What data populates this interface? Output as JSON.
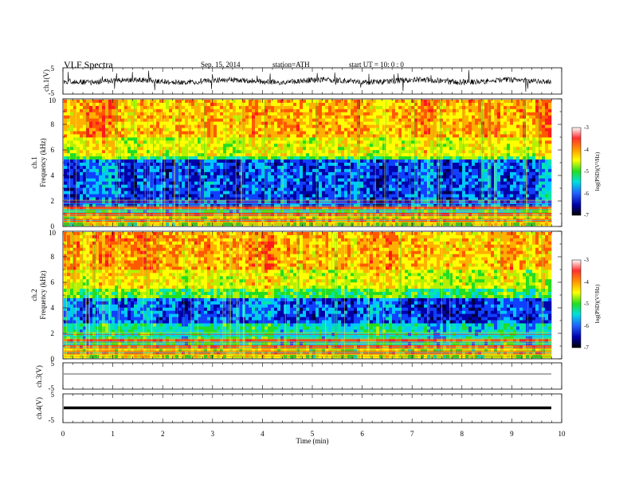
{
  "header": {
    "title": "VLF  Spectra",
    "date": "Sep. 15, 2014",
    "station": "station=ATH",
    "start": "start  UT  =    10: 0  : 0"
  },
  "chart_data": [
    {
      "type": "line",
      "name": "ch1-waveform",
      "ylabel": "ch.1(V)",
      "yticks": [
        "5",
        "-5"
      ],
      "ylim": [
        -5,
        5
      ],
      "xlim": [
        0,
        10
      ],
      "xticks": [
        "0",
        "1",
        "2",
        "3",
        "4",
        "5",
        "6",
        "7",
        "8",
        "9",
        "10"
      ],
      "xlabel": "Time  (min)"
    },
    {
      "type": "heatmap",
      "name": "ch1-spectrogram",
      "ylabel_channel": "ch.1",
      "ylabel": "Frequency  (kHz)",
      "yticks": [
        "0",
        "2",
        "4",
        "6",
        "8",
        "10"
      ],
      "ylim": [
        0,
        10
      ],
      "xlim": [
        0,
        9.8
      ],
      "colorbar": {
        "label": "log(PSD)(V²/Hz)",
        "ticks": [
          "-3",
          "-4",
          "-5",
          "-6",
          "-7"
        ],
        "range": [
          -7,
          -3
        ]
      }
    },
    {
      "type": "heatmap",
      "name": "ch2-spectrogram",
      "ylabel_channel": "ch.2",
      "ylabel": "Frequency  (kHz)",
      "yticks": [
        "0",
        "2",
        "4",
        "6",
        "8",
        "10"
      ],
      "ylim": [
        0,
        10
      ],
      "xlim": [
        0,
        9.8
      ],
      "colorbar": {
        "label": "log(PSD)(V²/Hz)",
        "ticks": [
          "-3",
          "-4",
          "-5",
          "-6",
          "-7"
        ],
        "range": [
          -7,
          -3
        ]
      }
    },
    {
      "type": "line",
      "name": "ch3-waveform",
      "ylabel": "ch.3(V)",
      "yticks": [
        "5",
        "-5"
      ],
      "ylim": [
        -5,
        5
      ]
    },
    {
      "type": "line",
      "name": "ch4-waveform",
      "ylabel": "ch.4(V)",
      "yticks": [
        "5",
        "-5"
      ],
      "ylim": [
        -5,
        5
      ]
    }
  ]
}
